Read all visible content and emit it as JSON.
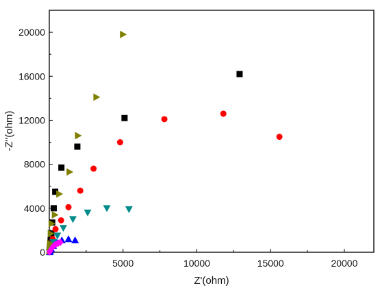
{
  "chart_data": {
    "type": "scatter",
    "title": "",
    "xlabel": "Z'(ohm)",
    "ylabel": "-Z''(ohm)",
    "xlim": [
      0,
      22000
    ],
    "ylim": [
      0,
      22000
    ],
    "x_ticks": [
      0,
      5000,
      10000,
      15000,
      20000
    ],
    "y_ticks": [
      0,
      4000,
      8000,
      12000,
      16000,
      20000
    ],
    "x_tick_labels": [
      "",
      "5000",
      "10000",
      "15000",
      "20000"
    ],
    "y_tick_labels": [
      "0",
      "4000",
      "8000",
      "12000",
      "16000",
      "20000"
    ],
    "grid": false,
    "legend": "none",
    "series": [
      {
        "marker": "square",
        "color": "#000000",
        "points": [
          [
            20,
            50
          ],
          [
            40,
            250
          ],
          [
            60,
            600
          ],
          [
            90,
            1100
          ],
          [
            140,
            1700
          ],
          [
            200,
            2700
          ],
          [
            300,
            4000
          ],
          [
            400,
            5500
          ],
          [
            820,
            7700
          ],
          [
            1900,
            9600
          ],
          [
            5100,
            12200
          ],
          [
            12900,
            16200
          ]
        ]
      },
      {
        "marker": "circle",
        "color": "#ff0000",
        "points": [
          [
            30,
            40
          ],
          [
            70,
            200
          ],
          [
            130,
            500
          ],
          [
            230,
            1200
          ],
          [
            420,
            2100
          ],
          [
            800,
            2900
          ],
          [
            1300,
            4100
          ],
          [
            2100,
            5600
          ],
          [
            3000,
            7600
          ],
          [
            4800,
            10000
          ],
          [
            7800,
            12100
          ],
          [
            11800,
            12600
          ],
          [
            15600,
            10500
          ]
        ]
      },
      {
        "marker": "triangle-up",
        "color": "#0000ff",
        "points": [
          [
            20,
            20
          ],
          [
            60,
            100
          ],
          [
            130,
            300
          ],
          [
            260,
            600
          ],
          [
            500,
            900
          ],
          [
            850,
            1100
          ],
          [
            1300,
            1200
          ],
          [
            1750,
            1100
          ]
        ]
      },
      {
        "marker": "triangle-down",
        "color": "#008b8b",
        "points": [
          [
            20,
            30
          ],
          [
            50,
            150
          ],
          [
            120,
            450
          ],
          [
            280,
            900
          ],
          [
            550,
            1500
          ],
          [
            950,
            2200
          ],
          [
            1600,
            3000
          ],
          [
            2600,
            3600
          ],
          [
            3900,
            4000
          ],
          [
            5400,
            3900
          ]
        ]
      },
      {
        "marker": "triangle-right",
        "color": "#808000",
        "points": [
          [
            20,
            100
          ],
          [
            40,
            400
          ],
          [
            60,
            800
          ],
          [
            100,
            1700
          ],
          [
            160,
            2600
          ],
          [
            380,
            3400
          ],
          [
            680,
            5300
          ],
          [
            1380,
            7300
          ],
          [
            1950,
            10600
          ],
          [
            3200,
            14100
          ],
          [
            5000,
            19800
          ]
        ]
      },
      {
        "marker": "diamond",
        "color": "#ff00ff",
        "points": [
          [
            20,
            30
          ],
          [
            60,
            130
          ],
          [
            130,
            280
          ],
          [
            220,
            450
          ],
          [
            330,
            620
          ],
          [
            460,
            740
          ],
          [
            600,
            830
          ],
          [
            750,
            900
          ]
        ]
      }
    ]
  }
}
